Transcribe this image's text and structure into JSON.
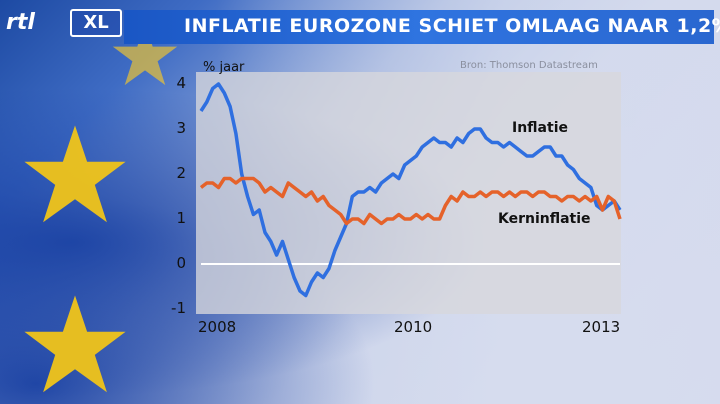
{
  "header": {
    "logo_text": "rtl",
    "logo_badge": "XL",
    "headline": "INFLATIE EUROZONE SCHIET OMLAAG NAAR 1,2%"
  },
  "colors": {
    "header_blue": "#2a67d0",
    "inflatie": "#2f6fe0",
    "kerninflatie": "#e5622a",
    "star_yellow": "#f0c419"
  },
  "chart_data": {
    "type": "line",
    "ylabel": "% jaar",
    "source": "Bron: Thomson Datastream",
    "ylim": [
      -1,
      4
    ],
    "yticks": [
      "4",
      "3",
      "2",
      "1",
      "0",
      "-1"
    ],
    "xticks": [
      "2008",
      "2010",
      "2013"
    ],
    "xlim": [
      2007.0,
      2013.0
    ],
    "zero_line": true,
    "series": [
      {
        "name": "Inflatie",
        "x": [
          2007.0,
          2007.083,
          2007.167,
          2007.25,
          2007.333,
          2007.417,
          2007.5,
          2007.583,
          2007.667,
          2007.75,
          2007.833,
          2007.917,
          2008.0,
          2008.083,
          2008.167,
          2008.25,
          2008.333,
          2008.417,
          2008.5,
          2008.583,
          2008.667,
          2008.75,
          2008.833,
          2008.917,
          2009.0,
          2009.083,
          2009.167,
          2009.25,
          2009.333,
          2009.417,
          2009.5,
          2009.583,
          2009.667,
          2009.75,
          2009.833,
          2009.917,
          2010.0,
          2010.083,
          2010.167,
          2010.25,
          2010.333,
          2010.417,
          2010.5,
          2010.583,
          2010.667,
          2010.75,
          2010.833,
          2010.917,
          2011.0,
          2011.083,
          2011.167,
          2011.25,
          2011.333,
          2011.417,
          2011.5,
          2011.583,
          2011.667,
          2011.75,
          2011.833,
          2011.917,
          2012.0,
          2012.083,
          2012.167,
          2012.25,
          2012.333,
          2012.417,
          2012.5,
          2012.583,
          2012.667,
          2012.75,
          2012.833,
          2012.917,
          2013.0
        ],
        "values": [
          3.4,
          3.6,
          3.9,
          4.0,
          3.8,
          3.5,
          2.9,
          2.0,
          1.5,
          1.1,
          1.2,
          0.7,
          0.5,
          0.2,
          0.5,
          0.1,
          -0.3,
          -0.6,
          -0.7,
          -0.4,
          -0.2,
          -0.3,
          -0.1,
          0.3,
          0.6,
          0.9,
          1.5,
          1.6,
          1.6,
          1.7,
          1.6,
          1.8,
          1.9,
          2.0,
          1.9,
          2.2,
          2.3,
          2.4,
          2.6,
          2.7,
          2.8,
          2.7,
          2.7,
          2.6,
          2.8,
          2.7,
          2.9,
          3.0,
          3.0,
          2.8,
          2.7,
          2.7,
          2.6,
          2.7,
          2.6,
          2.5,
          2.4,
          2.4,
          2.5,
          2.6,
          2.6,
          2.4,
          2.4,
          2.2,
          2.1,
          1.9,
          1.8,
          1.7,
          1.3,
          1.2,
          1.3,
          1.4,
          1.2
        ]
      },
      {
        "name": "Kerninflatie",
        "x": [
          2007.0,
          2007.083,
          2007.167,
          2007.25,
          2007.333,
          2007.417,
          2007.5,
          2007.583,
          2007.667,
          2007.75,
          2007.833,
          2007.917,
          2008.0,
          2008.083,
          2008.167,
          2008.25,
          2008.333,
          2008.417,
          2008.5,
          2008.583,
          2008.667,
          2008.75,
          2008.833,
          2008.917,
          2009.0,
          2009.083,
          2009.167,
          2009.25,
          2009.333,
          2009.417,
          2009.5,
          2009.583,
          2009.667,
          2009.75,
          2009.833,
          2009.917,
          2010.0,
          2010.083,
          2010.167,
          2010.25,
          2010.333,
          2010.417,
          2010.5,
          2010.583,
          2010.667,
          2010.75,
          2010.833,
          2010.917,
          2011.0,
          2011.083,
          2011.167,
          2011.25,
          2011.333,
          2011.417,
          2011.5,
          2011.583,
          2011.667,
          2011.75,
          2011.833,
          2011.917,
          2012.0,
          2012.083,
          2012.167,
          2012.25,
          2012.333,
          2012.417,
          2012.5,
          2012.583,
          2012.667,
          2012.75,
          2012.833,
          2012.917,
          2013.0
        ],
        "values": [
          1.7,
          1.8,
          1.8,
          1.7,
          1.9,
          1.9,
          1.8,
          1.9,
          1.9,
          1.9,
          1.8,
          1.6,
          1.7,
          1.6,
          1.5,
          1.8,
          1.7,
          1.6,
          1.5,
          1.6,
          1.4,
          1.5,
          1.3,
          1.2,
          1.1,
          0.9,
          1.0,
          1.0,
          0.9,
          1.1,
          1.0,
          0.9,
          1.0,
          1.0,
          1.1,
          1.0,
          1.0,
          1.1,
          1.0,
          1.1,
          1.0,
          1.0,
          1.3,
          1.5,
          1.4,
          1.6,
          1.5,
          1.5,
          1.6,
          1.5,
          1.6,
          1.6,
          1.5,
          1.6,
          1.5,
          1.6,
          1.6,
          1.5,
          1.6,
          1.6,
          1.5,
          1.5,
          1.4,
          1.5,
          1.5,
          1.4,
          1.5,
          1.4,
          1.5,
          1.2,
          1.5,
          1.4,
          1.0
        ]
      }
    ]
  }
}
